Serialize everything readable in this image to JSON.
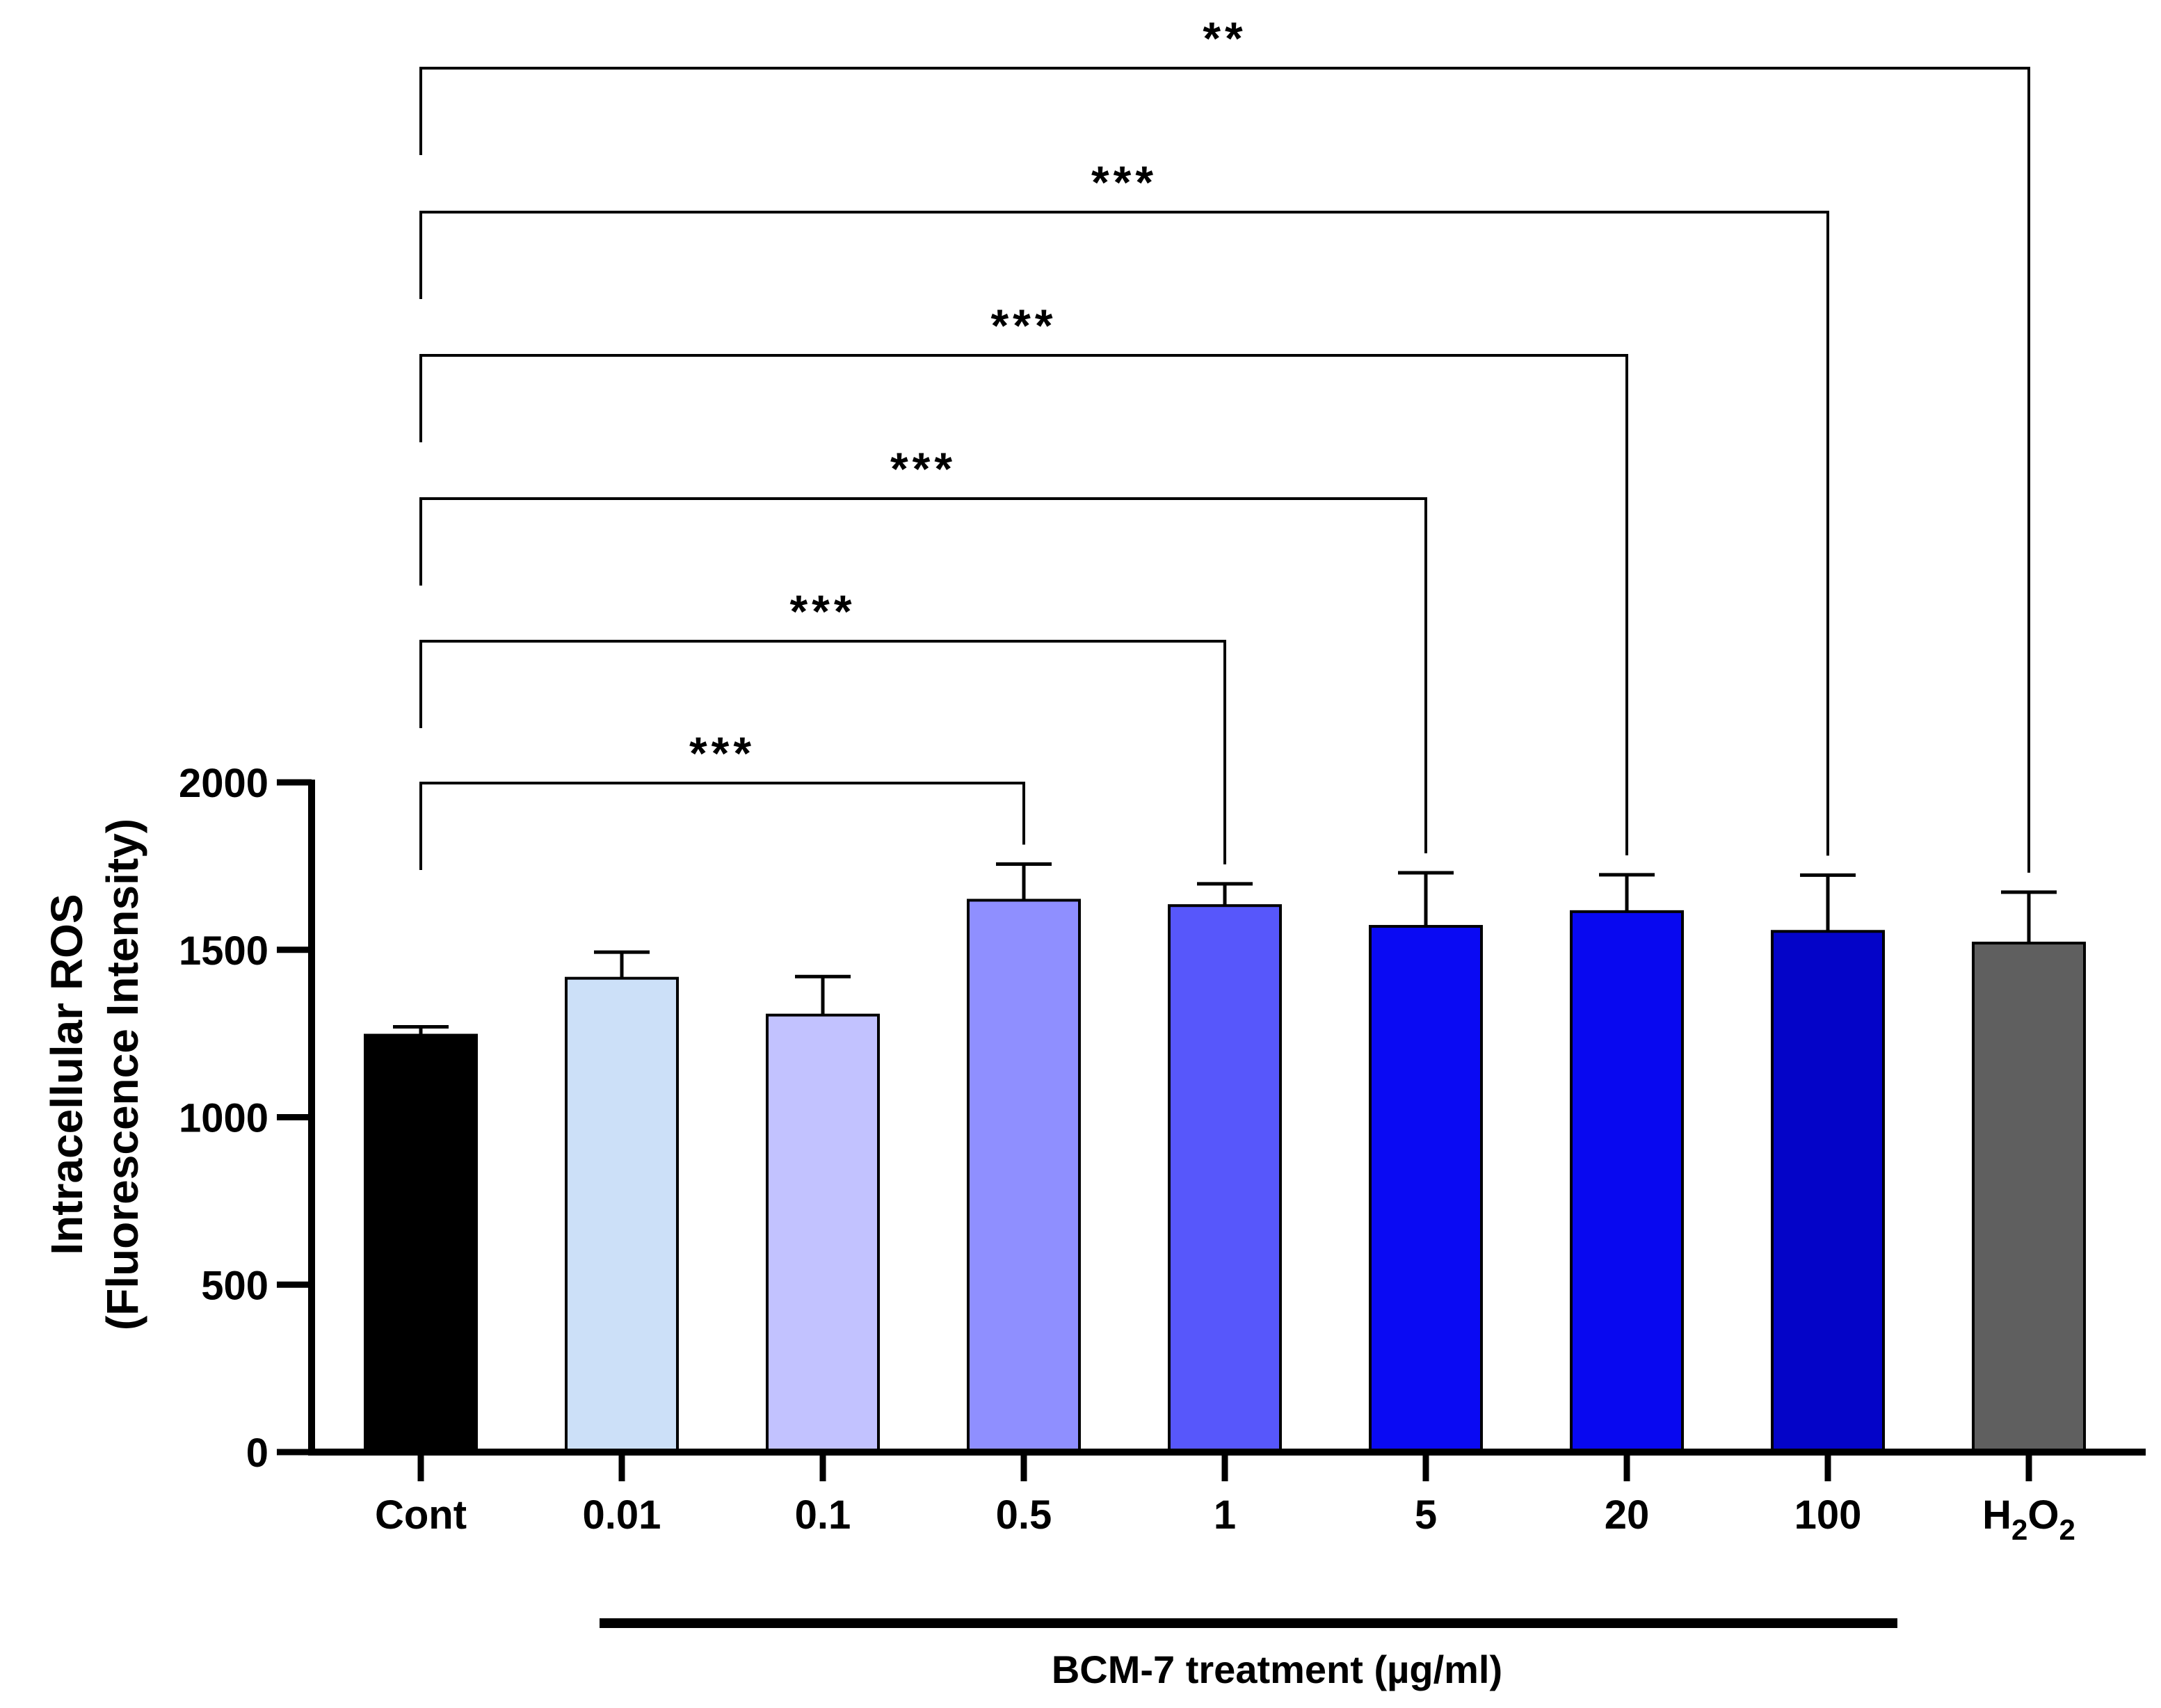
{
  "chart_data": {
    "type": "bar",
    "ylabel_line1": "Intracellular ROS",
    "ylabel_line2": "(Fluorescence Intensity)",
    "ylim": [
      0,
      2000
    ],
    "yticks": [
      0,
      500,
      1000,
      1500,
      2000
    ],
    "ytick_labels": [
      "0",
      "500",
      "1000",
      "1500",
      "2000"
    ],
    "categories": [
      "Cont",
      "0.01",
      "0.1",
      "0.5",
      "1",
      "5",
      "20",
      "100",
      "H2O2"
    ],
    "h2o2_label": {
      "base": "H",
      "sub1": "2",
      "mid": "O",
      "sub2": "2"
    },
    "values": [
      1245,
      1415,
      1305,
      1648,
      1632,
      1570,
      1614,
      1555,
      1520
    ],
    "errors": [
      25,
      78,
      115,
      108,
      65,
      160,
      110,
      168,
      152
    ],
    "bar_colors": [
      "#000000",
      "#cce0f8",
      "#c2c2ff",
      "#8f8fff",
      "#5757fb",
      "#0a0af3",
      "#0808f0",
      "#0404c8",
      "#5f5f5f"
    ],
    "group_bracket_label": "BCM-7 treatment (µg/ml)",
    "significance": [
      {
        "from": "Cont",
        "to": "0.5",
        "label": "***"
      },
      {
        "from": "Cont",
        "to": "1",
        "label": "***"
      },
      {
        "from": "Cont",
        "to": "5",
        "label": "***"
      },
      {
        "from": "Cont",
        "to": "20",
        "label": "***"
      },
      {
        "from": "Cont",
        "to": "100",
        "label": "***"
      },
      {
        "from": "Cont",
        "to": "H2O2",
        "label": "**"
      }
    ]
  }
}
